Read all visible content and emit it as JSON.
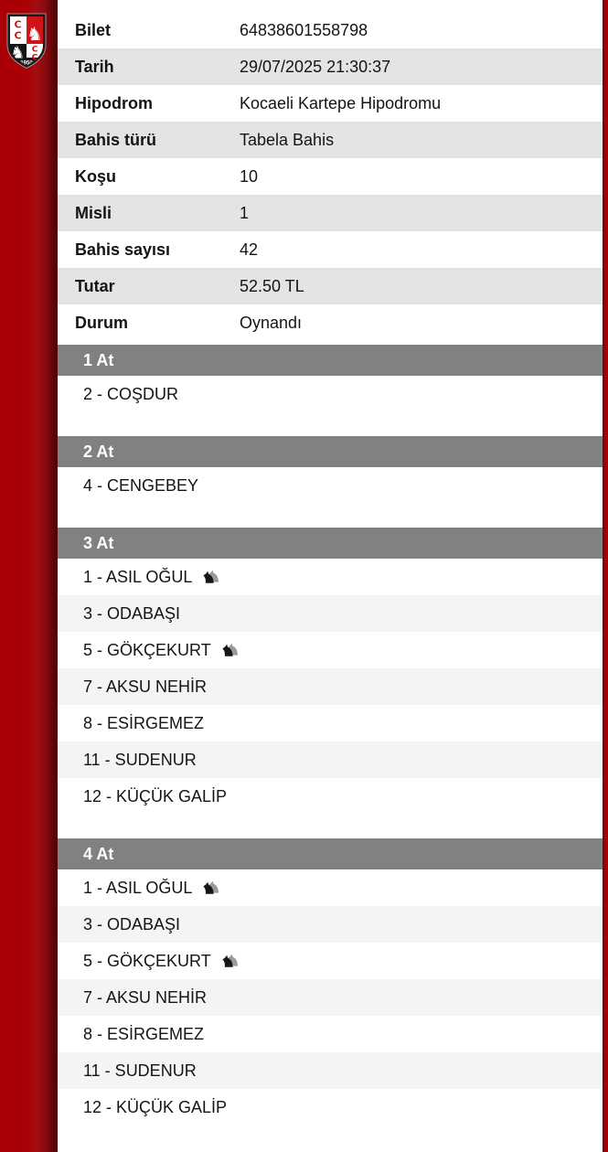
{
  "colors": {
    "left_bar_main": "#a80004",
    "left_bar_dark": "#490305",
    "right_bar": "#a80104",
    "table_alt_row": "#e4e4e4",
    "horse_alt_row": "#f4f4f4",
    "section_header_bg": "#818181",
    "section_header_text": "#ffffff",
    "logo_red": "#cf1318",
    "text": "#141414"
  },
  "logo": {
    "letters": [
      "C",
      "C"
    ],
    "year": "1950"
  },
  "ticket": {
    "rows": [
      {
        "label": "Bilet",
        "value": "64838601558798"
      },
      {
        "label": "Tarih",
        "value": "29/07/2025 21:30:37"
      },
      {
        "label": "Hipodrom",
        "value": "Kocaeli Kartepe Hipodromu"
      },
      {
        "label": "Bahis türü",
        "value": "Tabela Bahis"
      },
      {
        "label": "Koşu",
        "value": "10"
      },
      {
        "label": "Misli",
        "value": "1"
      },
      {
        "label": "Bahis sayısı",
        "value": "42"
      },
      {
        "label": "Tutar",
        "value": "52.50 TL"
      },
      {
        "label": "Durum",
        "value": "Oynandı"
      }
    ]
  },
  "sections": [
    {
      "title": "1 At",
      "horses": [
        {
          "name": "2 - COŞDUR",
          "horse_icon": false
        }
      ]
    },
    {
      "title": "2 At",
      "horses": [
        {
          "name": "4 - CENGEBEY",
          "horse_icon": false
        }
      ]
    },
    {
      "title": "3 At",
      "horses": [
        {
          "name": "1 - ASIL OĞUL",
          "horse_icon": true
        },
        {
          "name": "3 - ODABAŞI",
          "horse_icon": false
        },
        {
          "name": "5 - GÖKÇEKURT",
          "horse_icon": true
        },
        {
          "name": "7 - AKSU NEHİR",
          "horse_icon": false
        },
        {
          "name": "8 - ESİRGEMEZ",
          "horse_icon": false
        },
        {
          "name": "11 - SUDENUR",
          "horse_icon": false
        },
        {
          "name": "12 - KÜÇÜK GALİP",
          "horse_icon": false
        }
      ]
    },
    {
      "title": "4 At",
      "horses": [
        {
          "name": "1 - ASIL OĞUL",
          "horse_icon": true
        },
        {
          "name": "3 - ODABAŞI",
          "horse_icon": false
        },
        {
          "name": "5 - GÖKÇEKURT",
          "horse_icon": true
        },
        {
          "name": "7 - AKSU NEHİR",
          "horse_icon": false
        },
        {
          "name": "8 - ESİRGEMEZ",
          "horse_icon": false
        },
        {
          "name": "11 - SUDENUR",
          "horse_icon": false
        },
        {
          "name": "12 - KÜÇÜK GALİP",
          "horse_icon": false
        }
      ]
    }
  ]
}
